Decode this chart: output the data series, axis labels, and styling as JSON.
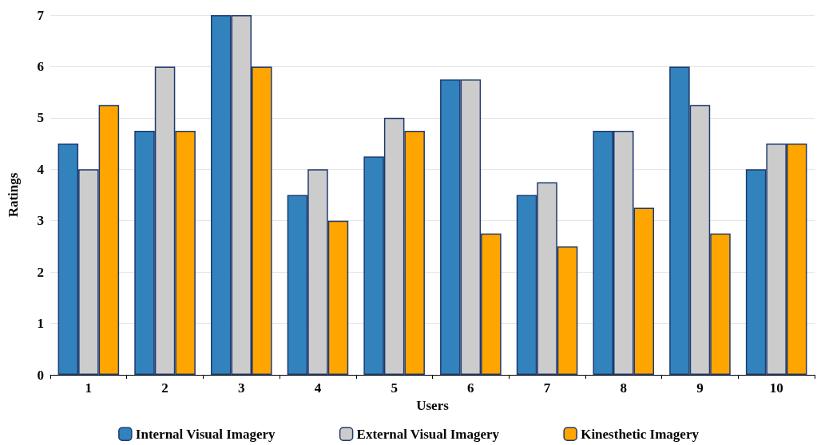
{
  "chart_data": {
    "type": "bar",
    "xlabel": "Users",
    "ylabel": "Ratings",
    "categories": [
      "1",
      "2",
      "3",
      "4",
      "5",
      "6",
      "7",
      "8",
      "9",
      "10"
    ],
    "series": [
      {
        "name": "Internal Visual Imagery",
        "color": "#3182bd",
        "values": [
          4.5,
          4.75,
          7,
          3.5,
          4.25,
          5.75,
          3.5,
          4.75,
          6,
          4
        ]
      },
      {
        "name": "External Visual Imagery",
        "color": "#cccccc",
        "values": [
          4,
          6,
          7,
          4,
          5,
          5.75,
          3.75,
          4.75,
          5.25,
          4.5
        ]
      },
      {
        "name": "Kinesthetic Imagery",
        "color": "#ffa500",
        "values": [
          5.25,
          4.75,
          6,
          3,
          4.75,
          2.75,
          2.5,
          3.25,
          2.75,
          4.5
        ]
      }
    ],
    "ylim": [
      0,
      7
    ],
    "yticks": [
      0,
      1,
      2,
      3,
      4,
      5,
      6,
      7
    ],
    "grid": "y",
    "legend": "bottom"
  }
}
